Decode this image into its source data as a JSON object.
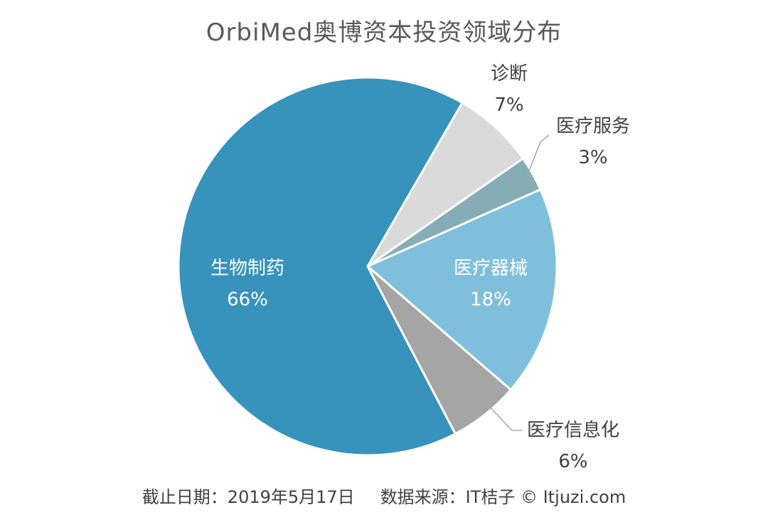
{
  "chart_data": {
    "type": "pie",
    "title": "OrbiMed奥博资本投资领域分布",
    "start_angle_deg": 30,
    "direction": "clockwise",
    "slices": [
      {
        "label": "诊断",
        "value": 7,
        "value_label": "7%",
        "color": "#DADADA",
        "label_placement": "outside"
      },
      {
        "label": "医疗服务",
        "value": 3,
        "value_label": "3%",
        "color": "#86ADB6",
        "label_placement": "outside"
      },
      {
        "label": "医疗器械",
        "value": 18,
        "value_label": "18%",
        "color": "#80BFDC",
        "label_placement": "inside"
      },
      {
        "label": "医疗信息化",
        "value": 6,
        "value_label": "6%",
        "color": "#A5A5A5",
        "label_placement": "outside"
      },
      {
        "label": "生物制药",
        "value": 66,
        "value_label": "66%",
        "color": "#3793BC",
        "label_placement": "inside"
      }
    ]
  },
  "footer": {
    "date_text": "截止日期：2019年5月17日",
    "source_text": "数据来源：IT桔子 © Itjuzi.com"
  }
}
